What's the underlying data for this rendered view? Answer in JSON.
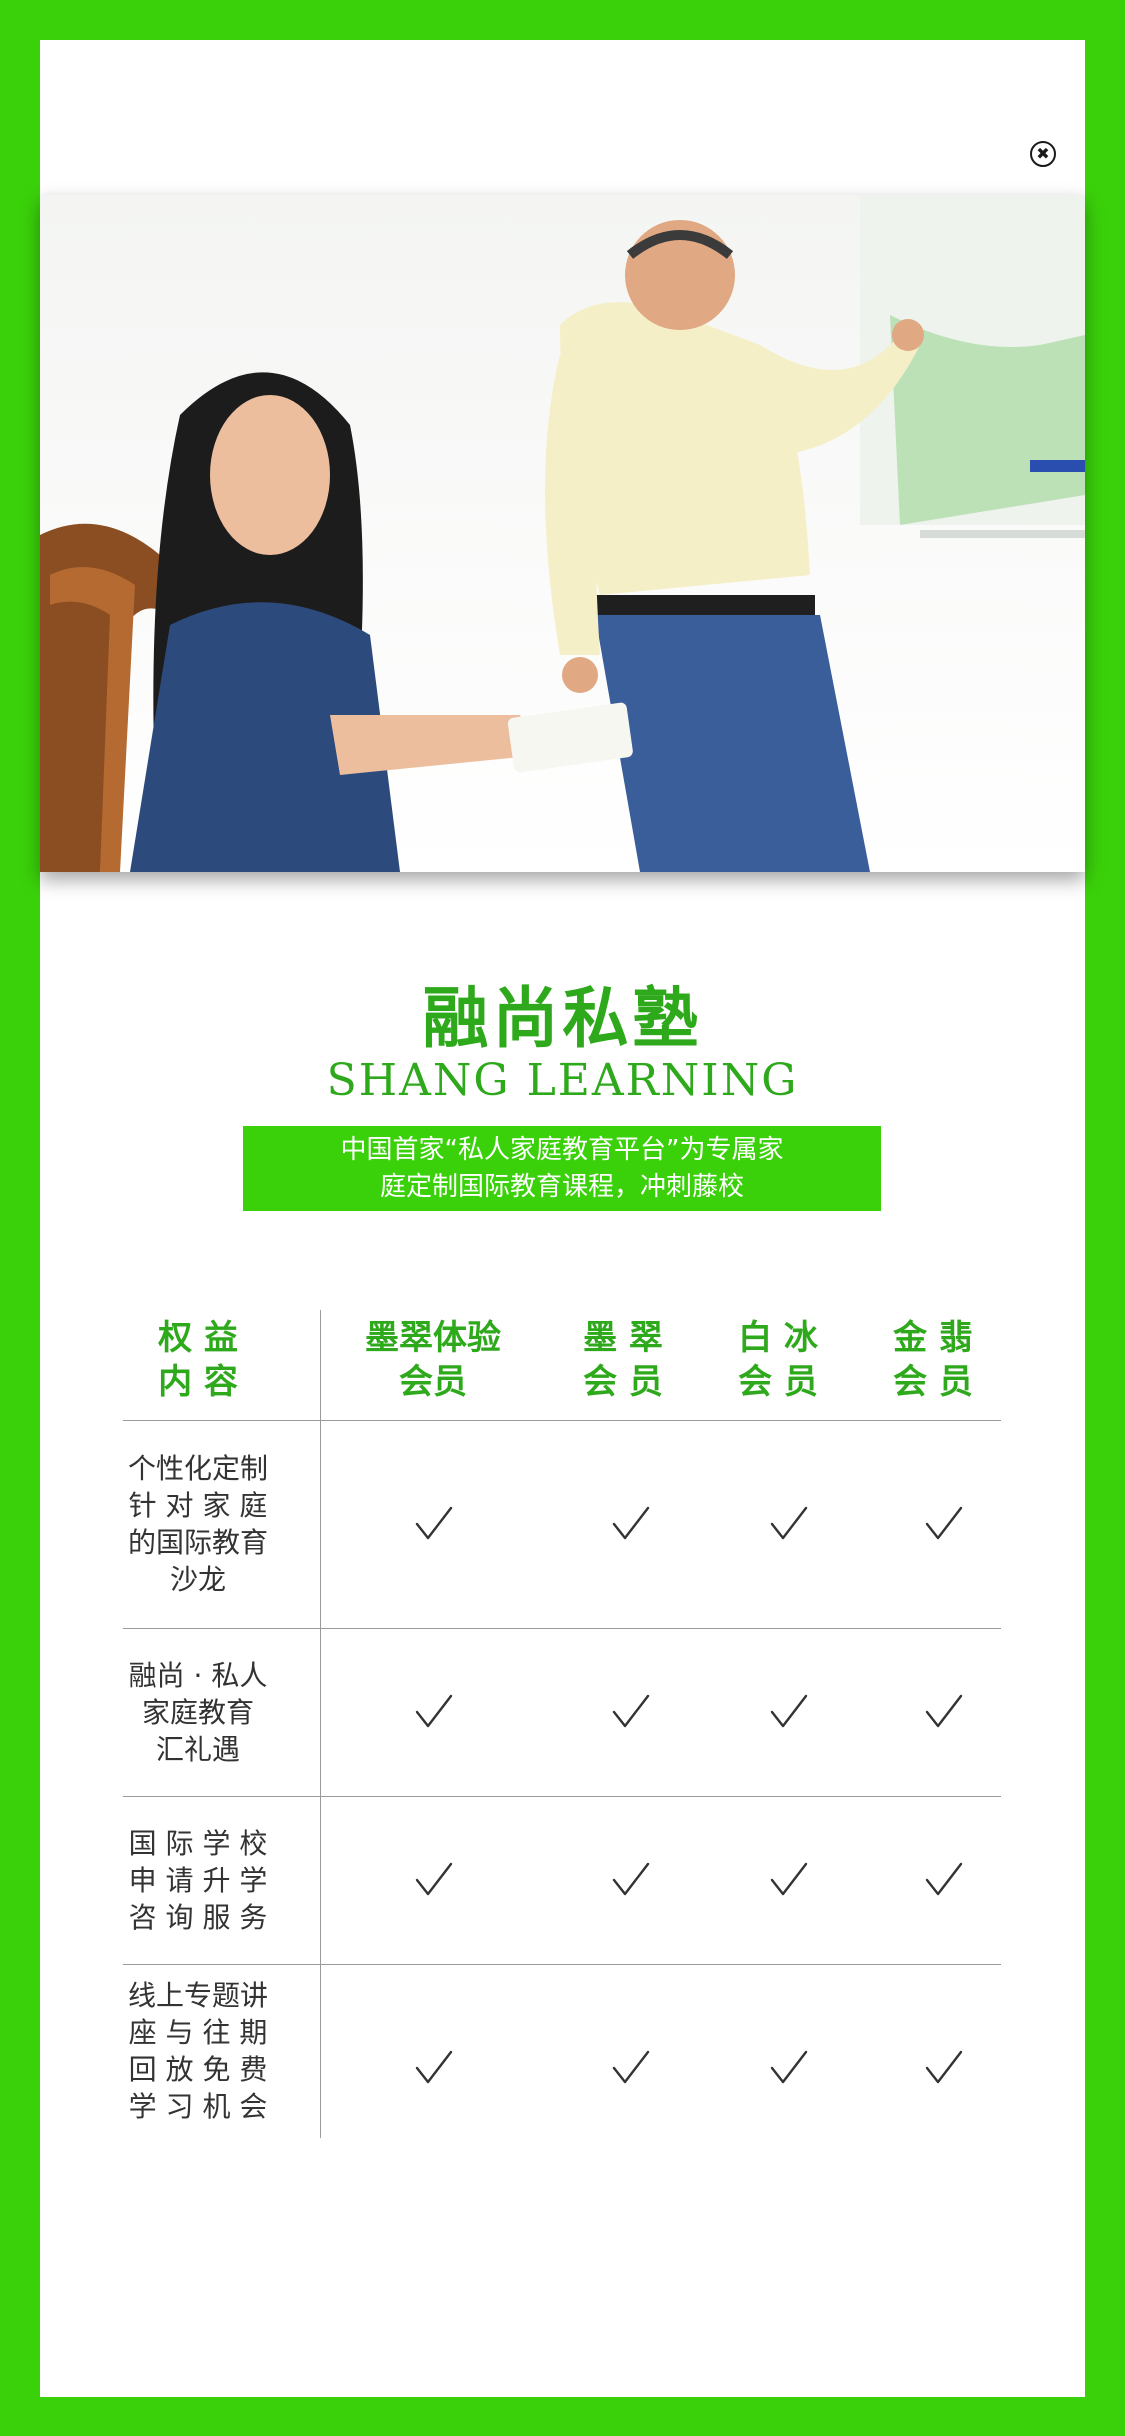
{
  "colors": {
    "frame": "#3ad10a",
    "brand": "#2fa91c",
    "text": "#333333"
  },
  "close_icon": "close-circle-icon",
  "close_glyph": "✖",
  "hero": {
    "icon": "photo-student-and-teacher"
  },
  "brand": {
    "name_cn": "融尚私塾",
    "name_en": "SHANG  LEARNING"
  },
  "tagline": {
    "line1": "中国首家“私人家庭教育平台”为专属家",
    "line2": "庭定制国际教育课程，冲刺藤校"
  },
  "table": {
    "headers": [
      {
        "line1": "权  益",
        "line2": "内  容"
      },
      {
        "line1": "墨翠体验",
        "line2": "会员"
      },
      {
        "line1": "墨  翠",
        "line2": "会  员"
      },
      {
        "line1": "白  冰",
        "line2": "会  员"
      },
      {
        "line1": "金  翡",
        "line2": "会  员"
      }
    ],
    "rows": [
      {
        "lines": [
          "个性化定制",
          "针 对 家 庭",
          "的国际教育",
          "沙龙"
        ],
        "checks": [
          true,
          true,
          true,
          true
        ]
      },
      {
        "lines": [
          "融尚 · 私人",
          "家庭教育",
          "汇礼遇"
        ],
        "checks": [
          true,
          true,
          true,
          true
        ]
      },
      {
        "lines": [
          "国 际 学 校",
          "申 请 升 学",
          "咨 询 服 务"
        ],
        "checks": [
          true,
          true,
          true,
          true
        ]
      },
      {
        "lines": [
          "线上专题讲",
          "座 与 往 期",
          "回 放 免 费",
          "学 习 机 会"
        ],
        "checks": [
          true,
          true,
          true,
          true
        ]
      }
    ]
  }
}
